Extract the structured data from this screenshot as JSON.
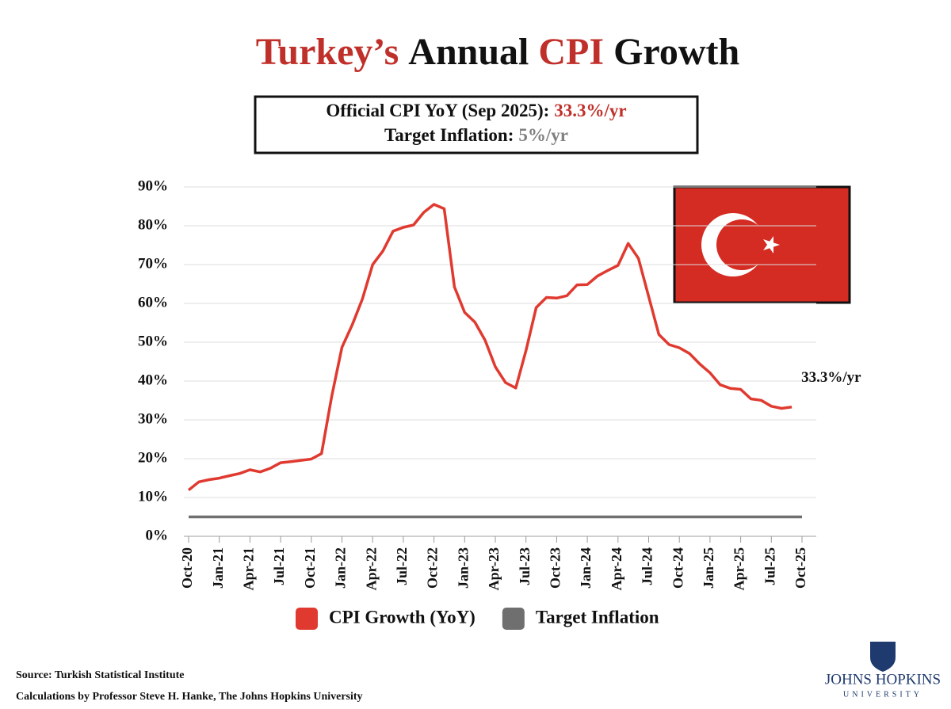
{
  "chart_data": {
    "type": "line",
    "title": [
      {
        "text": "Turkey’s",
        "color": "#c0302a"
      },
      {
        "text": "Annual",
        "color": "#111111"
      },
      {
        "text": "CPI",
        "color": "#c0302a"
      },
      {
        "text": "Growth",
        "color": "#111111"
      }
    ],
    "info_box": [
      {
        "label": "Official CPI YoY (Sep 2025):",
        "value": "33.3%/yr",
        "color": "#c0302a"
      },
      {
        "label": "Target Inflation:",
        "value": "5%/yr",
        "color": "#808080"
      }
    ],
    "categories": [
      "Oct-20",
      null,
      null,
      "Jan-21",
      null,
      null,
      "Apr-21",
      null,
      null,
      "Jul-21",
      null,
      null,
      "Oct-21",
      null,
      null,
      "Jan-22",
      null,
      null,
      "Apr-22",
      null,
      null,
      "Jul-22",
      null,
      null,
      "Oct-22",
      null,
      null,
      "Jan-23",
      null,
      null,
      "Apr-23",
      null,
      null,
      "Jul-23",
      null,
      null,
      "Oct-23",
      null,
      null,
      "Jan-24",
      null,
      null,
      "Apr-24",
      null,
      null,
      "Jul-24",
      null,
      null,
      "Oct-24",
      null,
      null,
      "Jan-25",
      null,
      null,
      "Apr-25",
      null,
      null,
      "Jul-25",
      null,
      null,
      "Oct-25"
    ],
    "series": [
      {
        "name": "CPI Growth (YoY)",
        "color": "#e03a30",
        "values": [
          11.89,
          14.03,
          14.6,
          14.97,
          15.61,
          16.19,
          17.14,
          16.59,
          17.53,
          18.95,
          19.25,
          19.58,
          19.89,
          21.31,
          36.08,
          48.69,
          54.44,
          61.14,
          69.97,
          73.5,
          78.62,
          79.6,
          80.21,
          83.45,
          85.51,
          84.39,
          64.27,
          57.68,
          55.18,
          50.51,
          43.68,
          39.59,
          38.21,
          47.83,
          58.94,
          61.53,
          61.36,
          61.98,
          64.77,
          64.86,
          67.07,
          68.5,
          69.8,
          75.45,
          71.6,
          61.78,
          51.97,
          49.38,
          48.58,
          47.09,
          44.38,
          42.12,
          39.05,
          38.1,
          37.86,
          35.41,
          35.05,
          33.52,
          32.95,
          33.3,
          null
        ]
      },
      {
        "name": "Target Inflation",
        "color": "#6f6f6f",
        "values": [
          5,
          5,
          5,
          5,
          5,
          5,
          5,
          5,
          5,
          5,
          5,
          5,
          5,
          5,
          5,
          5,
          5,
          5,
          5,
          5,
          5,
          5,
          5,
          5,
          5,
          5,
          5,
          5,
          5,
          5,
          5,
          5,
          5,
          5,
          5,
          5,
          5,
          5,
          5,
          5,
          5,
          5,
          5,
          5,
          5,
          5,
          5,
          5,
          5,
          5,
          5,
          5,
          5,
          5,
          5,
          5,
          5,
          5,
          5,
          5,
          5
        ]
      }
    ],
    "annotations": [
      {
        "text": "33.3%/yr",
        "series": 0,
        "index": 59
      }
    ],
    "ylim": [
      0,
      90
    ],
    "yticks": [
      {
        "value": 0,
        "label": "0%"
      },
      {
        "value": 10,
        "label": "10%"
      },
      {
        "value": 20,
        "label": "20%"
      },
      {
        "value": 30,
        "label": "30%"
      },
      {
        "value": 40,
        "label": "40%"
      },
      {
        "value": 50,
        "label": "50%"
      },
      {
        "value": 60,
        "label": "60%"
      },
      {
        "value": 70,
        "label": "70%"
      },
      {
        "value": 80,
        "label": "80%"
      },
      {
        "value": 90,
        "label": "90%"
      }
    ],
    "grid": true,
    "legend": "bottom"
  },
  "footer": {
    "source": "Source: Turkish Statistical Institute",
    "credit": "Calculations by Professor Steve H. Hanke, The Johns Hopkins University",
    "logo_name": "JOHNS HOPKINS",
    "logo_sub": "UNIVERSITY"
  }
}
